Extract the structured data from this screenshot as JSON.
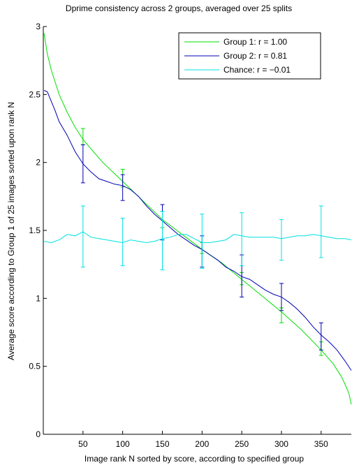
{
  "chart_data": {
    "type": "line",
    "title": "Dprime consistency across 2 groups, averaged over 25 splits",
    "xlabel": "Image rank N sorted by score, according to specified group",
    "ylabel": "Average score according to Group 1 of 25 images sorted upon rank N",
    "xlim": [
      0,
      388
    ],
    "ylim": [
      0,
      3
    ],
    "xticks": [
      50,
      100,
      150,
      200,
      250,
      300,
      350
    ],
    "yticks": [
      0,
      0.5,
      1,
      1.5,
      2,
      2.5,
      3
    ],
    "ytick_labels": [
      "0",
      "0.5",
      "1",
      "1.5",
      "2",
      "2.5",
      "3"
    ],
    "grid": false,
    "legend_position": "top-right",
    "series": [
      {
        "name": "Group 1: r = 1.00",
        "color": "#00e000",
        "x": [
          1,
          5,
          10,
          20,
          30,
          40,
          50,
          60,
          75,
          100,
          125,
          150,
          175,
          200,
          225,
          250,
          275,
          300,
          325,
          350,
          365,
          375,
          380,
          385,
          388
        ],
        "y": [
          2.95,
          2.8,
          2.68,
          2.5,
          2.37,
          2.26,
          2.17,
          2.1,
          2.0,
          1.86,
          1.72,
          1.58,
          1.47,
          1.36,
          1.26,
          1.14,
          1.02,
          0.9,
          0.77,
          0.62,
          0.52,
          0.43,
          0.37,
          0.3,
          0.22
        ],
        "errorbars": {
          "x": [
            50,
            100,
            150,
            200,
            250,
            300,
            350
          ],
          "y": [
            2.19,
            1.87,
            1.58,
            1.38,
            1.14,
            0.87,
            0.63
          ],
          "lower": [
            2.13,
            1.82,
            1.52,
            1.33,
            1.1,
            0.82,
            0.58
          ],
          "upper": [
            2.25,
            1.95,
            1.64,
            1.41,
            1.19,
            0.93,
            0.68
          ]
        }
      },
      {
        "name": "Group 2: r = 0.81",
        "color": "#0000b4",
        "x": [
          1,
          5,
          10,
          15,
          20,
          30,
          40,
          50,
          60,
          70,
          80,
          90,
          100,
          110,
          120,
          130,
          140,
          150,
          160,
          170,
          180,
          190,
          200,
          210,
          220,
          230,
          240,
          250,
          260,
          270,
          280,
          290,
          300,
          310,
          320,
          330,
          340,
          350,
          360,
          370,
          380,
          388
        ],
        "y": [
          2.53,
          2.52,
          2.45,
          2.38,
          2.3,
          2.2,
          2.08,
          1.99,
          1.93,
          1.88,
          1.86,
          1.84,
          1.83,
          1.8,
          1.75,
          1.68,
          1.62,
          1.57,
          1.52,
          1.47,
          1.43,
          1.39,
          1.36,
          1.32,
          1.28,
          1.23,
          1.2,
          1.16,
          1.14,
          1.1,
          1.06,
          1.03,
          1.01,
          0.97,
          0.92,
          0.86,
          0.79,
          0.73,
          0.68,
          0.62,
          0.54,
          0.47
        ],
        "errorbars": {
          "x": [
            50,
            100,
            150,
            200,
            250,
            300,
            350
          ],
          "y": [
            1.99,
            1.82,
            1.57,
            1.35,
            1.16,
            1.0,
            0.72
          ],
          "lower": [
            1.85,
            1.72,
            1.43,
            1.23,
            1.01,
            0.91,
            0.62
          ],
          "upper": [
            2.13,
            1.91,
            1.69,
            1.46,
            1.32,
            1.11,
            0.82
          ]
        }
      },
      {
        "name": "Chance: r = −0.01",
        "color": "#00e0e0",
        "x": [
          1,
          10,
          20,
          30,
          40,
          50,
          60,
          70,
          80,
          90,
          100,
          110,
          120,
          130,
          140,
          150,
          160,
          170,
          180,
          190,
          200,
          210,
          220,
          230,
          240,
          250,
          260,
          270,
          280,
          290,
          300,
          310,
          320,
          330,
          340,
          350,
          360,
          370,
          380,
          388
        ],
        "y": [
          1.42,
          1.41,
          1.43,
          1.47,
          1.46,
          1.49,
          1.45,
          1.44,
          1.43,
          1.42,
          1.41,
          1.43,
          1.42,
          1.41,
          1.42,
          1.44,
          1.45,
          1.47,
          1.47,
          1.44,
          1.41,
          1.41,
          1.42,
          1.43,
          1.47,
          1.46,
          1.45,
          1.45,
          1.45,
          1.45,
          1.44,
          1.45,
          1.46,
          1.46,
          1.47,
          1.46,
          1.45,
          1.44,
          1.44,
          1.43
        ],
        "errorbars": {
          "x": [
            50,
            100,
            150,
            200,
            250,
            300,
            350
          ],
          "y": [
            1.45,
            1.41,
            1.42,
            1.41,
            1.47,
            1.43,
            1.49
          ],
          "lower": [
            1.23,
            1.24,
            1.21,
            1.22,
            1.24,
            1.28,
            1.3
          ],
          "upper": [
            1.68,
            1.59,
            1.64,
            1.62,
            1.63,
            1.58,
            1.68
          ]
        }
      }
    ]
  }
}
